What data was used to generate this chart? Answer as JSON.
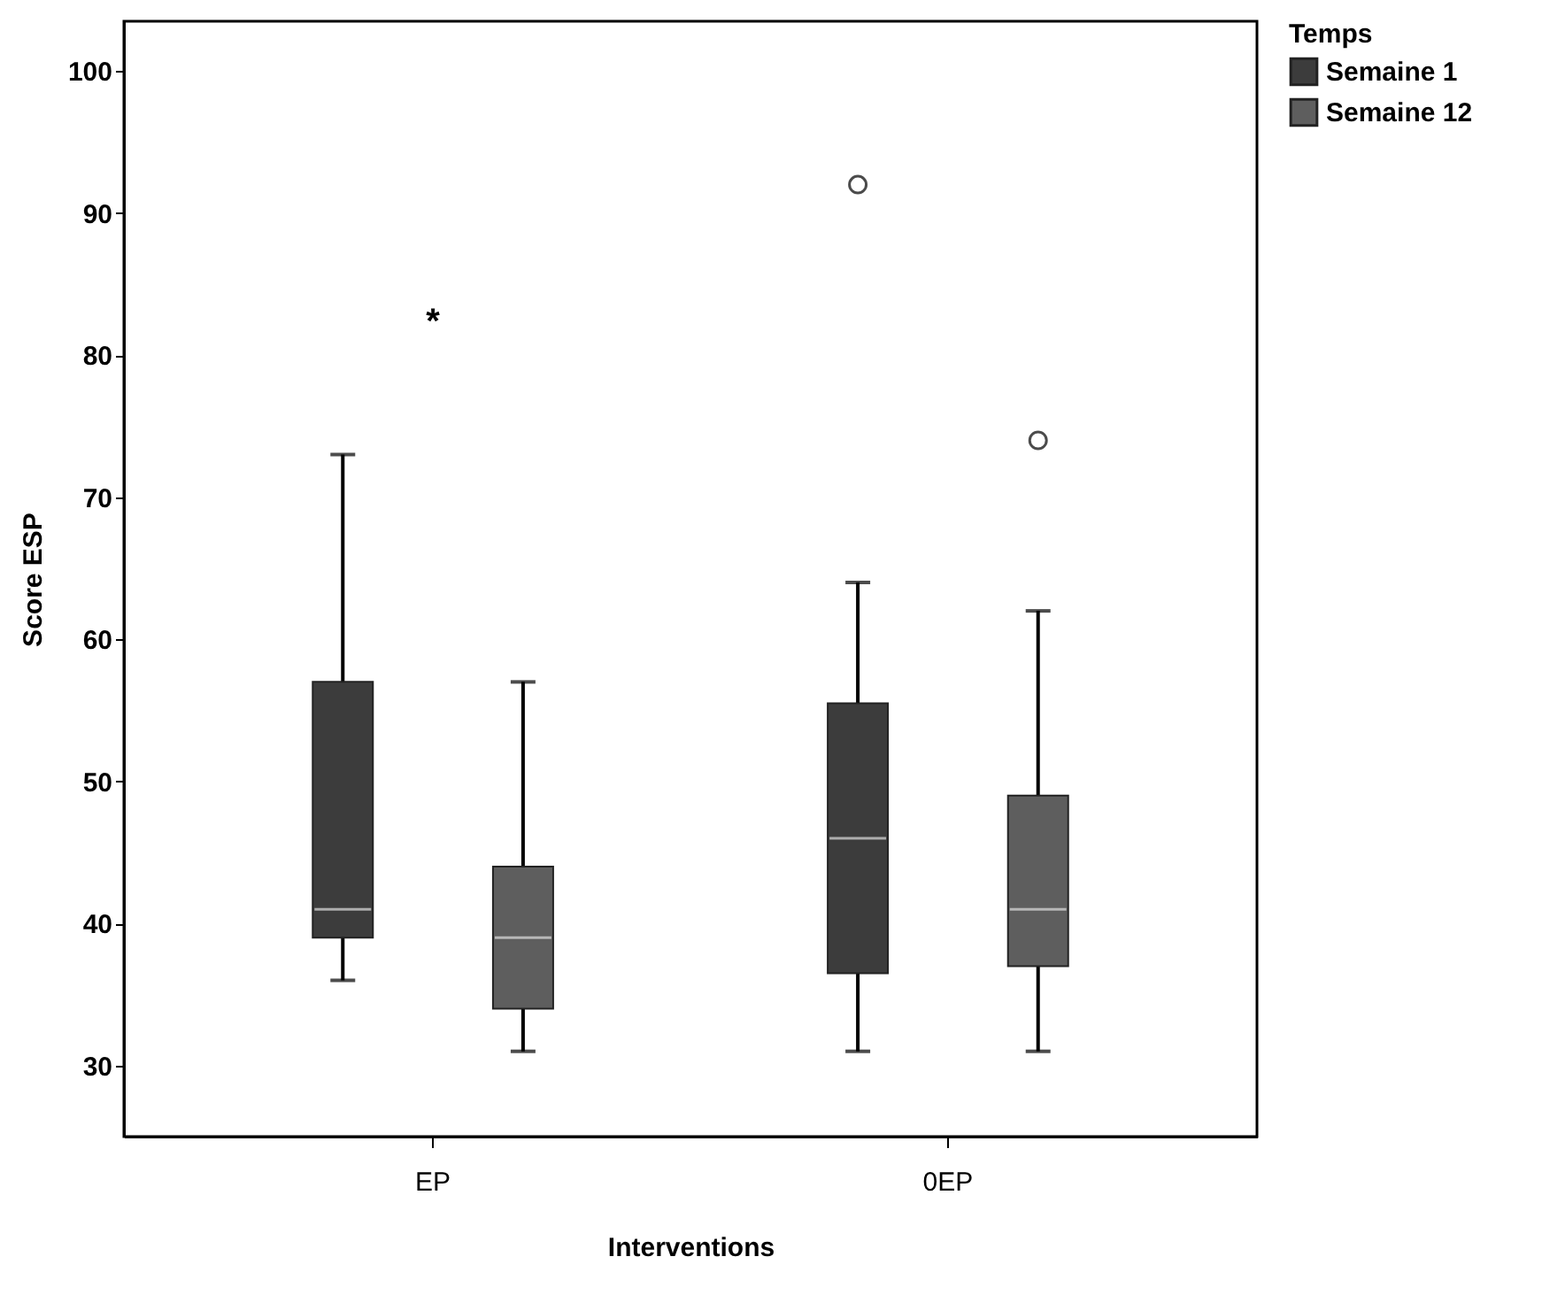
{
  "chart_data": {
    "type": "box",
    "xlabel": "Interventions",
    "ylabel": "Score ESP",
    "legend_title": "Temps",
    "categories": [
      "EP",
      "0EP"
    ],
    "series": [
      {
        "name": "Semaine 1",
        "color": "#3c3c3c",
        "boxes": [
          {
            "low": 36,
            "q1": 39,
            "median": 41,
            "q3": 57,
            "high": 73
          },
          {
            "low": 31,
            "q1": 36.5,
            "median": 46,
            "q3": 55.5,
            "high": 64,
            "outliers": [
              92
            ]
          }
        ]
      },
      {
        "name": "Semaine 12",
        "color": "#5e5e5e",
        "boxes": [
          {
            "low": 31,
            "q1": 34,
            "median": 39,
            "q3": 44,
            "high": 57
          },
          {
            "low": 31,
            "q1": 37,
            "median": 41,
            "q3": 49,
            "high": 62,
            "outliers": [
              74
            ]
          }
        ]
      }
    ],
    "ylim": [
      25,
      103.5
    ],
    "yticks": [
      30,
      40,
      50,
      60,
      70,
      80,
      90,
      100
    ],
    "grid": false,
    "legend": "top right",
    "annotations": [
      "*"
    ]
  }
}
